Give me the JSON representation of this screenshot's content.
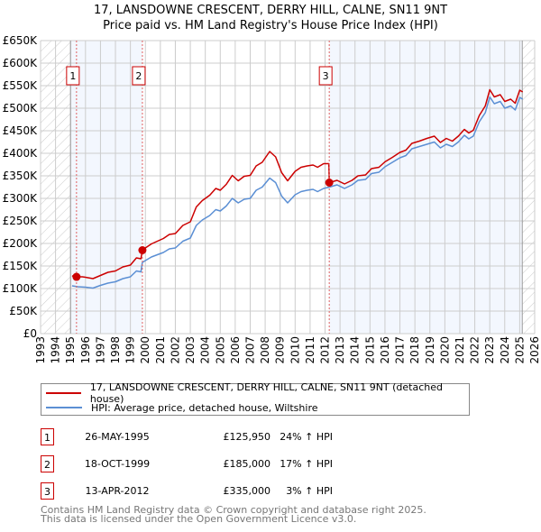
{
  "chart_data": {
    "type": "line",
    "title": "17, LANSDOWNE CRESCENT, DERRY HILL, CALNE, SN11 9NT",
    "subtitle": "Price paid vs. HM Land Registry's House Price Index (HPI)",
    "xlim": [
      1993,
      2026
    ],
    "ylim": [
      0,
      650000
    ],
    "x_ticks": [
      "1993",
      "1994",
      "1995",
      "1996",
      "1997",
      "1998",
      "1999",
      "2000",
      "2001",
      "2002",
      "2003",
      "2004",
      "2005",
      "2006",
      "2007",
      "2008",
      "2009",
      "2010",
      "2011",
      "2012",
      "2013",
      "2014",
      "2015",
      "2016",
      "2017",
      "2018",
      "2019",
      "2020",
      "2021",
      "2022",
      "2023",
      "2024",
      "2025",
      "2026"
    ],
    "y_ticks": [
      {
        "value": 0,
        "label": "£0"
      },
      {
        "value": 50000,
        "label": "£50K"
      },
      {
        "value": 100000,
        "label": "£100K"
      },
      {
        "value": 150000,
        "label": "£150K"
      },
      {
        "value": 200000,
        "label": "£200K"
      },
      {
        "value": 250000,
        "label": "£250K"
      },
      {
        "value": 300000,
        "label": "£300K"
      },
      {
        "value": 350000,
        "label": "£350K"
      },
      {
        "value": 400000,
        "label": "£400K"
      },
      {
        "value": 450000,
        "label": "£450K"
      },
      {
        "value": 500000,
        "label": "£500K"
      },
      {
        "value": 550000,
        "label": "£550K"
      },
      {
        "value": 600000,
        "label": "£600K"
      },
      {
        "value": 650000,
        "label": "£650K"
      }
    ],
    "grid": true,
    "hatched_ranges": [
      [
        1993,
        1995.0
      ],
      [
        2025.17,
        2026
      ]
    ],
    "shaded_ranges": [
      [
        1995.0,
        1999.8
      ],
      [
        2012.28,
        2025.17
      ]
    ],
    "series": [
      {
        "name": "17, LANSDOWNE CRESCENT, DERRY HILL, CALNE, SN11 9NT (detached house)",
        "color": "#cc0000",
        "x": [
          1995.1,
          1995.4,
          1995.8,
          1996.0,
          1996.5,
          1997.0,
          1997.5,
          1998.0,
          1998.5,
          1999.0,
          1999.4,
          1999.7,
          1999.8,
          2000.0,
          2000.4,
          2000.8,
          2001.2,
          2001.6,
          2002.0,
          2002.5,
          2003.0,
          2003.4,
          2003.8,
          2004.3,
          2004.7,
          2005.0,
          2005.4,
          2005.8,
          2006.2,
          2006.6,
          2007.0,
          2007.4,
          2007.8,
          2008.3,
          2008.7,
          2009.1,
          2009.5,
          2010.0,
          2010.4,
          2010.8,
          2011.2,
          2011.5,
          2011.9,
          2012.25,
          2012.28,
          2012.8,
          2013.3,
          2013.8,
          2014.2,
          2014.7,
          2015.1,
          2015.6,
          2016.0,
          2016.5,
          2017.0,
          2017.4,
          2017.8,
          2018.3,
          2018.8,
          2019.3,
          2019.7,
          2020.1,
          2020.5,
          2020.9,
          2021.3,
          2021.6,
          2021.9,
          2022.3,
          2022.7,
          2023.0,
          2023.3,
          2023.7,
          2024.0,
          2024.4,
          2024.7,
          2025.0,
          2025.2
        ],
        "y": [
          128000,
          125950,
          126000,
          125000,
          122000,
          129000,
          136000,
          139000,
          148000,
          152000,
          168000,
          166000,
          185000,
          190000,
          199000,
          205000,
          211000,
          220000,
          222000,
          240000,
          248000,
          281000,
          295000,
          307000,
          322000,
          318000,
          331000,
          351000,
          339000,
          349000,
          351000,
          372000,
          380000,
          404000,
          392000,
          357000,
          339000,
          360000,
          369000,
          372000,
          374000,
          369000,
          377000,
          377000,
          335000,
          340000,
          332000,
          340000,
          350000,
          352000,
          366000,
          369000,
          381000,
          391000,
          402000,
          407000,
          422000,
          427000,
          433000,
          438000,
          424000,
          433000,
          427000,
          438000,
          453000,
          445000,
          451000,
          484000,
          505000,
          541000,
          525000,
          530000,
          515000,
          520000,
          511000,
          540000,
          536000
        ]
      },
      {
        "name": "HPI: Average price, detached house, Wiltshire",
        "color": "#5b8fd4",
        "x": [
          1995.1,
          1995.5,
          1996.0,
          1996.5,
          1997.0,
          1997.5,
          1998.0,
          1998.5,
          1999.0,
          1999.4,
          1999.7,
          1999.8,
          2000.0,
          2000.4,
          2000.8,
          2001.2,
          2001.6,
          2002.0,
          2002.5,
          2003.0,
          2003.4,
          2003.8,
          2004.3,
          2004.7,
          2005.0,
          2005.4,
          2005.8,
          2006.2,
          2006.6,
          2007.0,
          2007.4,
          2007.8,
          2008.3,
          2008.7,
          2009.1,
          2009.5,
          2010.0,
          2010.4,
          2010.8,
          2011.2,
          2011.5,
          2011.9,
          2012.28,
          2012.8,
          2013.3,
          2013.8,
          2014.2,
          2014.7,
          2015.1,
          2015.6,
          2016.0,
          2016.5,
          2017.0,
          2017.4,
          2017.8,
          2018.3,
          2018.8,
          2019.3,
          2019.7,
          2020.1,
          2020.5,
          2020.9,
          2021.3,
          2021.6,
          2021.9,
          2022.3,
          2022.7,
          2023.0,
          2023.3,
          2023.7,
          2024.0,
          2024.4,
          2024.7,
          2025.0,
          2025.2
        ],
        "y": [
          106000,
          104000,
          103000,
          101000,
          107000,
          112000,
          115000,
          122000,
          126000,
          139000,
          137000,
          158000,
          162000,
          170000,
          175000,
          180000,
          188000,
          190000,
          205000,
          212000,
          240000,
          252000,
          262000,
          275000,
          272000,
          283000,
          300000,
          290000,
          298000,
          300000,
          318000,
          325000,
          345000,
          335000,
          305000,
          290000,
          308000,
          315000,
          318000,
          320000,
          315000,
          322000,
          325000,
          330000,
          322000,
          330000,
          340000,
          342000,
          355000,
          358000,
          370000,
          380000,
          390000,
          395000,
          410000,
          415000,
          420000,
          425000,
          412000,
          420000,
          415000,
          425000,
          440000,
          432000,
          438000,
          470000,
          490000,
          525000,
          510000,
          515000,
          500000,
          505000,
          496000,
          524000,
          520000
        ]
      }
    ],
    "annotations": [
      {
        "label": "1",
        "x": 1995.4,
        "y": 125950
      },
      {
        "label": "2",
        "x": 1999.8,
        "y": 185000
      },
      {
        "label": "3",
        "x": 2012.28,
        "y": 335000
      }
    ],
    "legend_placement": "bottom"
  },
  "legend": {
    "property": "17, LANSDOWNE CRESCENT, DERRY HILL, CALNE, SN11 9NT (detached house)",
    "hpi": "HPI: Average price, detached house, Wiltshire"
  },
  "sales": [
    {
      "num": "1",
      "date": "26-MAY-1995",
      "price": "£125,950",
      "hpi": "24% ↑ HPI"
    },
    {
      "num": "2",
      "date": "18-OCT-1999",
      "price": "£185,000",
      "hpi": "17% ↑ HPI"
    },
    {
      "num": "3",
      "date": "13-APR-2012",
      "price": "£335,000",
      "hpi": "3% ↑ HPI"
    }
  ],
  "footer": {
    "line1": "Contains HM Land Registry data © Crown copyright and database right 2025.",
    "line2": "This data is licensed under the Open Government Licence v3.0."
  }
}
